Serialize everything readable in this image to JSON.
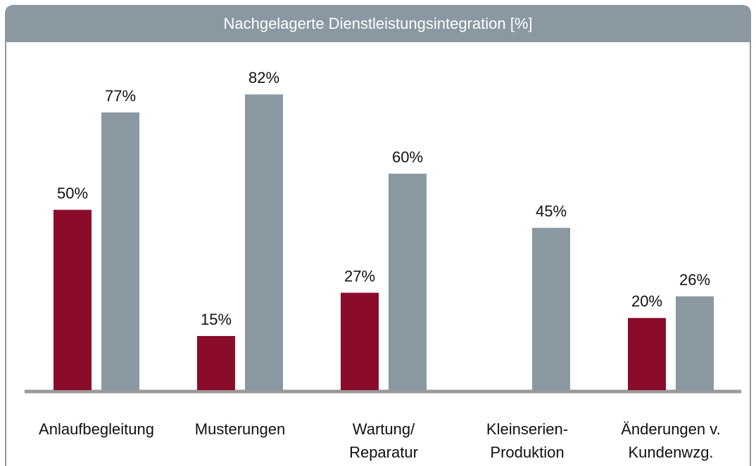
{
  "chart_data": {
    "type": "bar",
    "title": "Nachgelagerte Dienstleistungsintegration [%]",
    "categories": [
      [
        "Anlaufbegleitung"
      ],
      [
        "Musterungen"
      ],
      [
        "Wartung/",
        "Reparatur"
      ],
      [
        "Kleinserien-",
        "Produktion"
      ],
      [
        "Änderungen v.",
        "Kundenwzg."
      ]
    ],
    "series": [
      {
        "color": "#8b0c2a",
        "values": [
          50,
          15,
          27,
          null,
          20
        ],
        "value_labels": [
          "50%",
          "15%",
          "27%",
          null,
          "20%"
        ]
      },
      {
        "color": "#8a98a2",
        "values": [
          77,
          82,
          60,
          45,
          26
        ],
        "value_labels": [
          "77%",
          "82%",
          "60%",
          "45%",
          "26%"
        ]
      }
    ]
  }
}
